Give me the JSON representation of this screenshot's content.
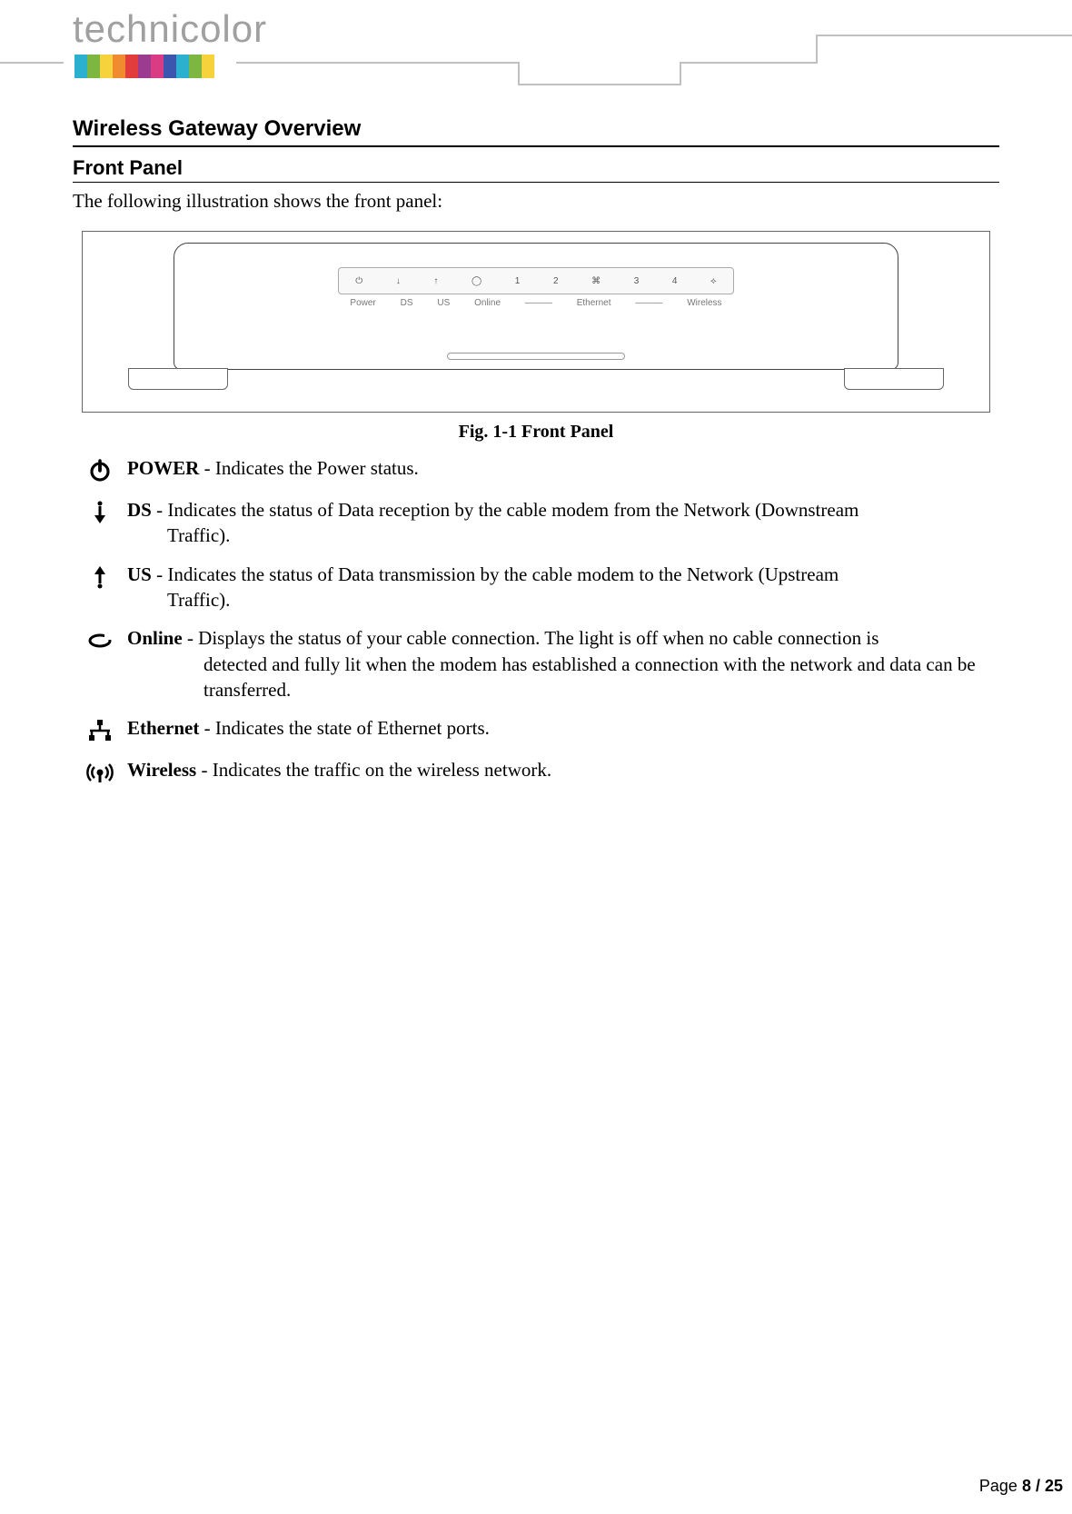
{
  "logo": {
    "text": "technicolor",
    "bars": [
      "#2bb0d0",
      "#7db742",
      "#f6d33c",
      "#f08b2f",
      "#e33c3c",
      "#9b3c90",
      "#d93c82",
      "#3c56b0",
      "#2bb0d0",
      "#7db742",
      "#f6d33c"
    ]
  },
  "headings": {
    "h1": "Wireless Gateway Overview",
    "h2": "Front Panel"
  },
  "intro": "The following illustration shows the front panel:",
  "figure": {
    "caption": "Fig. 1-1 Front Panel",
    "led_icons": [
      "⏻",
      "↓",
      "↑",
      "◯",
      "1",
      "2",
      "⌘",
      "3",
      "4",
      "⟡"
    ],
    "led_labels": [
      "Power",
      "DS",
      "US",
      "Online",
      "———",
      "Ethernet",
      "———",
      "Wireless"
    ]
  },
  "items": [
    {
      "icon": "power",
      "label": "POWER",
      "desc1": " - Indicates the Power status.",
      "desc2": ""
    },
    {
      "icon": "down",
      "label": "DS",
      "desc1": " - Indicates the status of Data reception by the cable modem from the Network (Downstream",
      "desc2": "Traffic)."
    },
    {
      "icon": "up",
      "label": "US",
      "desc1": " - Indicates the status of Data transmission by the cable modem to the Network (Upstream",
      "desc2": "Traffic)."
    },
    {
      "icon": "online",
      "label": "Online",
      "desc1": " - Displays the status of your cable connection. The light is off when no cable connection is",
      "desc2": "detected   and fully lit when the modem has established a connection with the network and data can be transferred."
    },
    {
      "icon": "ethernet",
      "label": "Ethernet",
      "desc1": " - Indicates the state of Ethernet ports.",
      "desc2": ""
    },
    {
      "icon": "wireless",
      "label": "Wireless",
      "desc1": " - Indicates the traffic on the wireless network.",
      "desc2": ""
    }
  ],
  "footer": {
    "prefix": "Page ",
    "current": "8",
    "sep": " / ",
    "total": "25"
  }
}
